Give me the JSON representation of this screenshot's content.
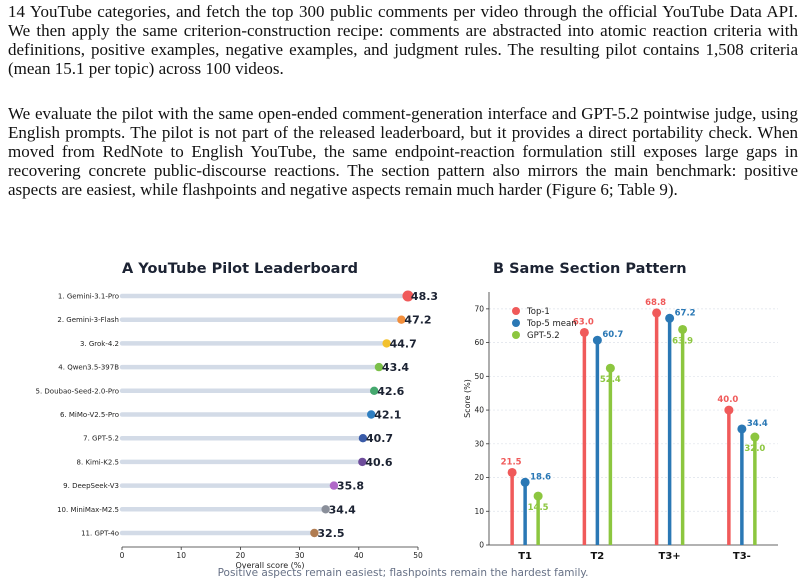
{
  "paper": {
    "paragraph1": "14 YouTube categories, and fetch the top 300 public comments per video through the official YouTube Data API. We then apply the same criterion-construction recipe: comments are abstracted into atomic reaction criteria with definitions, positive examples, negative examples, and judgment rules. The resulting pilot contains 1,508 criteria (mean 15.1 per topic) across 100 videos.",
    "paragraph2": "We evaluate the pilot with the same open-ended comment-generation interface and GPT-5.2 pointwise judge, using English prompts. The pilot is not part of the released leaderboard, but it provides a direct portability check. When moved from RedNote to English YouTube, the same endpoint-reaction formulation still exposes large gaps in recovering concrete public-discourse reactions. The section pattern also mirrors the main benchmark: positive aspects are easiest, while flashpoints and negative aspects remain much harder (Figure 6; Table 9).",
    "caption": "Positive aspects remain easiest; flashpoints remain the hardest family."
  },
  "chart_data": [
    {
      "type": "dot",
      "title": "A  YouTube Pilot Leaderboard",
      "xlabel": "Overall score (%)",
      "xlim": [
        0,
        50
      ],
      "xticks": [
        0,
        10,
        20,
        30,
        40,
        50
      ],
      "grid": false,
      "rows": [
        {
          "label": "1. Gemini-3.1-Pro",
          "value": 48.3,
          "color": "#f05a5a"
        },
        {
          "label": "2. Gemini-3-Flash",
          "value": 47.2,
          "color": "#f28e3b"
        },
        {
          "label": "3. Grok-4.2",
          "value": 44.7,
          "color": "#f2c12e"
        },
        {
          "label": "4. Qwen3.5-397B",
          "value": 43.4,
          "color": "#7cc04a"
        },
        {
          "label": "5. Doubao-Seed-2.0-Pro",
          "value": 42.6,
          "color": "#45a86e"
        },
        {
          "label": "6. MiMo-V2.5-Pro",
          "value": 42.1,
          "color": "#2f7fc1"
        },
        {
          "label": "7. GPT-5.2",
          "value": 40.7,
          "color": "#3a5ba8"
        },
        {
          "label": "8. Kimi-K2.5",
          "value": 40.6,
          "color": "#6d4c9a"
        },
        {
          "label": "9. DeepSeek-V3",
          "value": 35.8,
          "color": "#b068c8"
        },
        {
          "label": "10. MiniMax-M2.5",
          "value": 34.4,
          "color": "#8a8f9a"
        },
        {
          "label": "11. GPT-4o",
          "value": 32.5,
          "color": "#b07c52"
        }
      ]
    },
    {
      "type": "bar",
      "title": "B  Same Section Pattern",
      "ylabel": "Score (%)",
      "ylim": [
        0,
        75
      ],
      "yticks": [
        0,
        10,
        20,
        30,
        40,
        50,
        60,
        70
      ],
      "grid": true,
      "legend": "top-left",
      "categories": [
        "T1",
        "T2",
        "T3+",
        "T3-"
      ],
      "series": [
        {
          "name": "Top-1",
          "color": "#f05a5a",
          "values": [
            21.5,
            63.0,
            68.8,
            40.0
          ]
        },
        {
          "name": "Top-5 mean",
          "color": "#2a78b5",
          "values": [
            18.6,
            60.7,
            67.2,
            34.4
          ]
        },
        {
          "name": "GPT-5.2",
          "color": "#8cc63f",
          "values": [
            14.5,
            52.4,
            63.9,
            32.0
          ]
        }
      ]
    }
  ]
}
